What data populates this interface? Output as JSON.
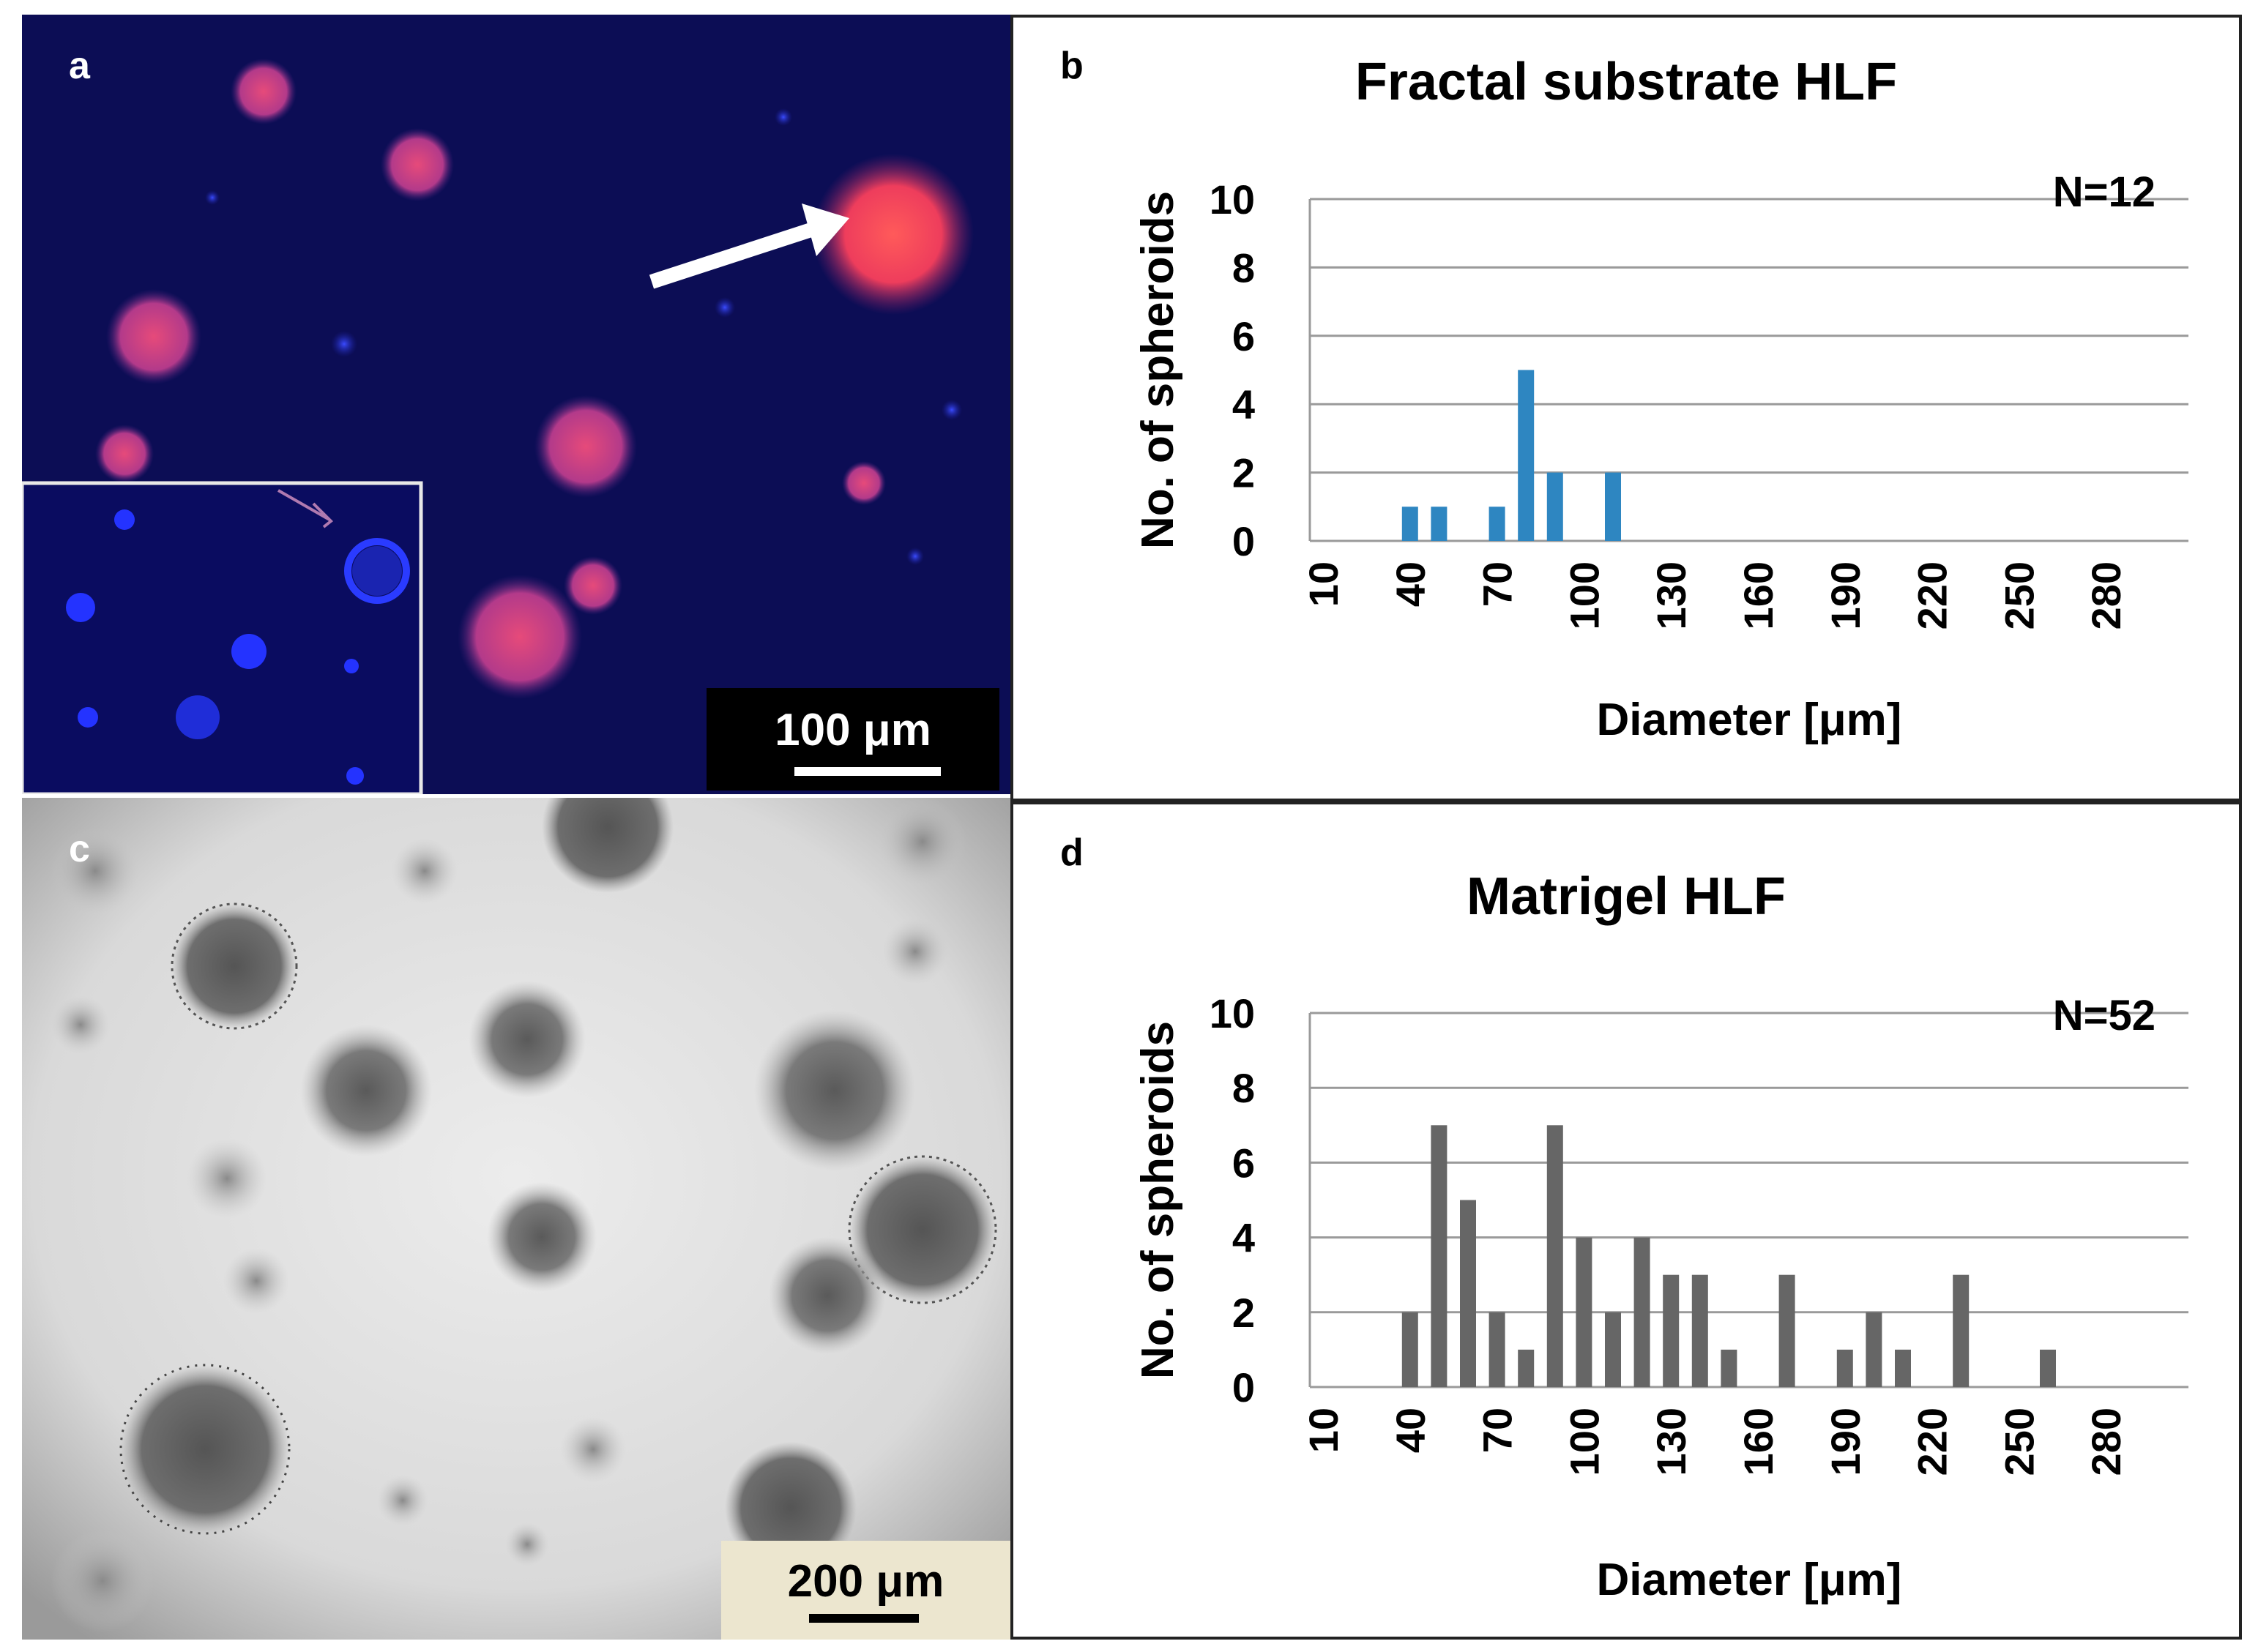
{
  "panels": {
    "a": {
      "letter": "a",
      "scale_label": "100 μm"
    },
    "b": {
      "letter": "b"
    },
    "c": {
      "letter": "c",
      "scale_label": "200 μm"
    },
    "d": {
      "letter": "d"
    }
  },
  "colors": {
    "fractal_bars": "#2e86c1",
    "matrigel_bars": "#666666"
  },
  "chart_data": [
    {
      "type": "bar",
      "title": "Fractal substrate HLF",
      "xlabel": "Diameter [μm]",
      "ylabel": "No. of spheroids",
      "annotation": "N=12",
      "x_tick_labels": [
        "10",
        "40",
        "70",
        "100",
        "130",
        "160",
        "190",
        "220",
        "250",
        "280"
      ],
      "ylim": [
        0,
        10
      ],
      "y_ticks": [
        0,
        2,
        4,
        6,
        8,
        10
      ],
      "grid": true,
      "categories": [
        10,
        20,
        30,
        40,
        50,
        60,
        70,
        80,
        90,
        100,
        110,
        120,
        130,
        140,
        150,
        160,
        170,
        180,
        190,
        200,
        210,
        220,
        230,
        240,
        250,
        260,
        270,
        280,
        290
      ],
      "values": [
        0,
        0,
        0,
        1,
        1,
        0,
        1,
        5,
        2,
        0,
        2,
        0,
        0,
        0,
        0,
        0,
        0,
        0,
        0,
        0,
        0,
        0,
        0,
        0,
        0,
        0,
        0,
        0,
        0
      ],
      "color": "#2e86c1"
    },
    {
      "type": "bar",
      "title": "Matrigel HLF",
      "xlabel": "Diameter [μm]",
      "ylabel": "No. of spheroids",
      "annotation": "N=52",
      "x_tick_labels": [
        "10",
        "40",
        "70",
        "100",
        "130",
        "160",
        "190",
        "220",
        "250",
        "280"
      ],
      "ylim": [
        0,
        10
      ],
      "y_ticks": [
        0,
        2,
        4,
        6,
        8,
        10
      ],
      "grid": true,
      "categories": [
        10,
        20,
        30,
        40,
        50,
        60,
        70,
        80,
        90,
        100,
        110,
        120,
        130,
        140,
        150,
        160,
        170,
        180,
        190,
        200,
        210,
        220,
        230,
        240,
        250,
        260,
        270,
        280,
        290
      ],
      "values": [
        0,
        0,
        0,
        2,
        7,
        5,
        2,
        1,
        7,
        4,
        2,
        4,
        3,
        3,
        1,
        0,
        3,
        0,
        1,
        2,
        1,
        0,
        3,
        0,
        0,
        1,
        0,
        0,
        0
      ],
      "color": "#666666"
    }
  ]
}
